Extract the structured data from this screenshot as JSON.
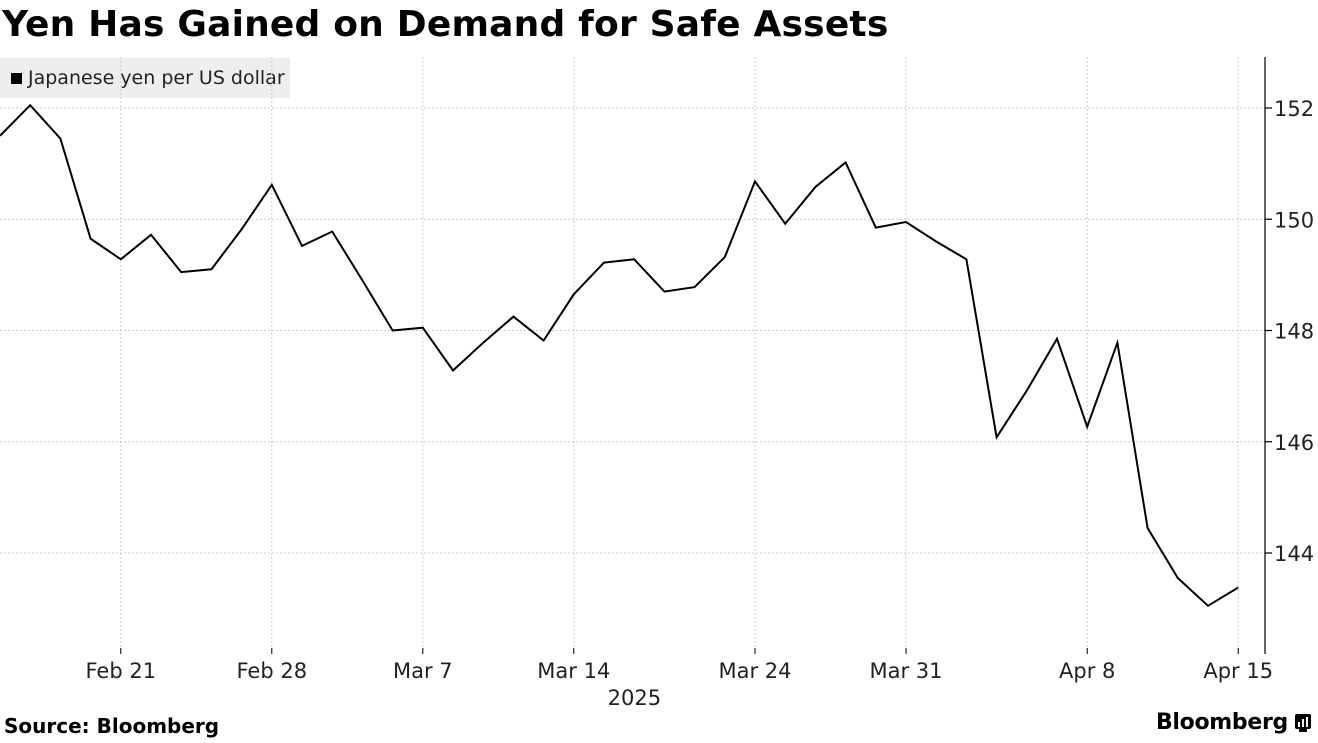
{
  "title": "Yen Has Gained on Demand for Safe Assets",
  "legend": {
    "label": "Japanese yen per US dollar"
  },
  "footer": {
    "source": "Source: Bloomberg",
    "brand": "Bloomberg",
    "brand_icon": "bloomberg-terminal-icon"
  },
  "colors": {
    "line": "#000000",
    "grid": "#cccccc",
    "legend_bg": "#eeeeee"
  },
  "chart_data": {
    "type": "line",
    "title": "Yen Has Gained on Demand for Safe Assets",
    "xlabel": "2025",
    "ylabel": "",
    "ylim": [
      142.2,
      152.9
    ],
    "y_ticks": [
      144,
      146,
      148,
      150,
      152
    ],
    "x_tick_labels": [
      "Feb 21",
      "Feb 28",
      "Mar 7",
      "Mar 14",
      "Mar 24",
      "Mar 31",
      "Apr 8",
      "Apr 15"
    ],
    "x_tick_indices": [
      4,
      9,
      14,
      19,
      25,
      30,
      36,
      41
    ],
    "year_label": "2025",
    "grid": true,
    "legend_position": "top-left",
    "y_axis_side": "right",
    "series": [
      {
        "name": "Japanese yen per US dollar",
        "x": [
          "Feb 17",
          "Feb 18",
          "Feb 19",
          "Feb 20",
          "Feb 21",
          "Feb 24",
          "Feb 25",
          "Feb 26",
          "Feb 27",
          "Feb 28",
          "Mar 3",
          "Mar 4",
          "Mar 5",
          "Mar 6",
          "Mar 7",
          "Mar 10",
          "Mar 11",
          "Mar 12",
          "Mar 13",
          "Mar 14",
          "Mar 17",
          "Mar 18",
          "Mar 19",
          "Mar 20",
          "Mar 21",
          "Mar 24",
          "Mar 25",
          "Mar 26",
          "Mar 27",
          "Mar 28",
          "Mar 31",
          "Apr 1",
          "Apr 2",
          "Apr 3",
          "Apr 4",
          "Apr 7",
          "Apr 8",
          "Apr 9",
          "Apr 10",
          "Apr 11",
          "Apr 14",
          "Apr 15"
        ],
        "values": [
          151.5,
          152.05,
          151.45,
          149.65,
          149.28,
          149.72,
          149.05,
          149.1,
          149.82,
          150.62,
          149.52,
          149.78,
          148.9,
          148.0,
          148.05,
          147.28,
          147.78,
          148.25,
          147.82,
          148.65,
          149.22,
          149.28,
          148.7,
          148.78,
          149.32,
          150.68,
          149.92,
          150.58,
          151.02,
          149.85,
          149.95,
          149.6,
          149.28,
          146.08,
          146.92,
          147.85,
          146.27,
          147.78,
          144.45,
          143.55,
          143.05,
          143.38
        ]
      }
    ]
  }
}
